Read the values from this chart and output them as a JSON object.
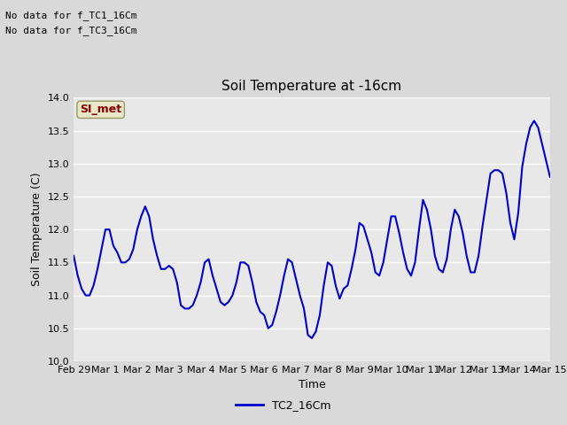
{
  "title": "Soil Temperature at -16cm",
  "xlabel": "Time",
  "ylabel": "Soil Temperature (C)",
  "ylim": [
    10.0,
    14.0
  ],
  "yticks": [
    10.0,
    10.5,
    11.0,
    11.5,
    12.0,
    12.5,
    13.0,
    13.5,
    14.0
  ],
  "line_color": "#0000cc",
  "line_width": 1.5,
  "bg_color": "#d9d9d9",
  "plot_bg_color": "#e8e8e8",
  "legend_label": "TC2_16Cm",
  "legend_line_color": "#0000cc",
  "no_data_texts": [
    "No data for f_TC1_16Cm",
    "No data for f_TC3_16Cm"
  ],
  "si_met_text": "SI_met",
  "x_tick_labels": [
    "Feb 29",
    "Mar 1",
    "Mar 2",
    "Mar 3",
    "Mar 4",
    "Mar 5",
    "Mar 6",
    "Mar 7",
    "Mar 8",
    "Mar 9",
    "Mar 10",
    "Mar 11",
    "Mar 12",
    "Mar 13",
    "Mar 14",
    "Mar 15"
  ],
  "x_tick_positions": [
    0,
    1,
    2,
    3,
    4,
    5,
    6,
    7,
    8,
    9,
    10,
    11,
    12,
    13,
    14,
    15
  ],
  "data_x": [
    0.0,
    0.125,
    0.25,
    0.375,
    0.5,
    0.625,
    0.75,
    0.875,
    1.0,
    1.125,
    1.25,
    1.375,
    1.5,
    1.625,
    1.75,
    1.875,
    2.0,
    2.125,
    2.25,
    2.375,
    2.5,
    2.625,
    2.75,
    2.875,
    3.0,
    3.125,
    3.25,
    3.375,
    3.5,
    3.625,
    3.75,
    3.875,
    4.0,
    4.125,
    4.25,
    4.375,
    4.5,
    4.625,
    4.75,
    4.875,
    5.0,
    5.125,
    5.25,
    5.375,
    5.5,
    5.625,
    5.75,
    5.875,
    6.0,
    6.125,
    6.25,
    6.375,
    6.5,
    6.625,
    6.75,
    6.875,
    7.0,
    7.125,
    7.25,
    7.375,
    7.5,
    7.625,
    7.75,
    7.875,
    8.0,
    8.125,
    8.25,
    8.375,
    8.5,
    8.625,
    8.75,
    8.875,
    9.0,
    9.125,
    9.25,
    9.375,
    9.5,
    9.625,
    9.75,
    9.875,
    10.0,
    10.125,
    10.25,
    10.375,
    10.5,
    10.625,
    10.75,
    10.875,
    11.0,
    11.125,
    11.25,
    11.375,
    11.5,
    11.625,
    11.75,
    11.875,
    12.0,
    12.125,
    12.25,
    12.375,
    12.5,
    12.625,
    12.75,
    12.875,
    13.0,
    13.125,
    13.25,
    13.375,
    13.5,
    13.625,
    13.75,
    13.875,
    14.0,
    14.125,
    14.25,
    14.375,
    14.5,
    14.625,
    14.75,
    14.875,
    15.0
  ],
  "data_y": [
    11.6,
    11.3,
    11.1,
    11.0,
    11.0,
    11.15,
    11.4,
    11.7,
    12.0,
    12.0,
    11.75,
    11.65,
    11.5,
    11.5,
    11.55,
    11.7,
    12.0,
    12.2,
    12.35,
    12.2,
    11.85,
    11.6,
    11.4,
    11.4,
    11.45,
    11.4,
    11.2,
    10.85,
    10.8,
    10.8,
    10.85,
    11.0,
    11.2,
    11.5,
    11.55,
    11.3,
    11.1,
    10.9,
    10.85,
    10.9,
    11.0,
    11.2,
    11.5,
    11.5,
    11.45,
    11.2,
    10.9,
    10.75,
    10.7,
    10.5,
    10.55,
    10.75,
    11.0,
    11.3,
    11.55,
    11.5,
    11.25,
    11.0,
    10.8,
    10.4,
    10.35,
    10.45,
    10.7,
    11.15,
    11.5,
    11.45,
    11.15,
    10.95,
    11.1,
    11.15,
    11.4,
    11.7,
    12.1,
    12.05,
    11.85,
    11.65,
    11.35,
    11.3,
    11.5,
    11.85,
    12.2,
    12.2,
    11.95,
    11.65,
    11.4,
    11.3,
    11.5,
    12.0,
    12.45,
    12.3,
    12.0,
    11.6,
    11.4,
    11.35,
    11.55,
    12.0,
    12.3,
    12.2,
    11.95,
    11.6,
    11.35,
    11.35,
    11.6,
    12.05,
    12.45,
    12.85,
    12.9,
    12.9,
    12.85,
    12.55,
    12.1,
    11.85,
    12.25,
    12.95,
    13.3,
    13.55,
    13.65,
    13.55,
    13.3,
    13.05,
    12.8
  ]
}
